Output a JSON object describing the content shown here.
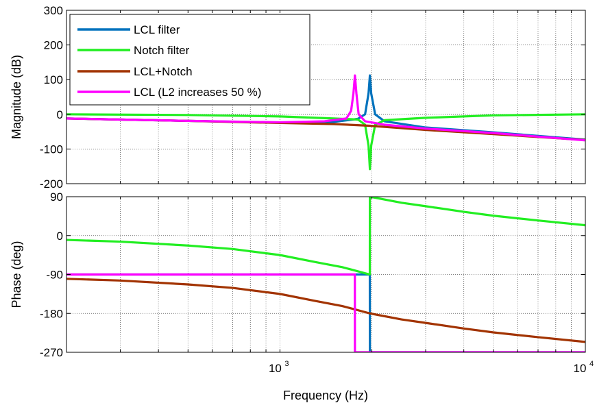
{
  "chart_data": [
    {
      "type": "line",
      "ylabel": "Magnitude (dB)",
      "xscale": "log",
      "xlim": [
        200,
        10000
      ],
      "ylim": [
        -200,
        300
      ],
      "yticks": [
        -200,
        -100,
        0,
        100,
        200,
        300
      ],
      "ytick_labels": [
        "-200",
        "-100",
        "0",
        "100",
        "200",
        "300"
      ],
      "grid": "dotted",
      "legend": {
        "position": "top-left",
        "entries": [
          "LCL filter",
          "Notch filter",
          "LCL+Notch",
          "LCL (L2 increases 50 %)"
        ]
      },
      "series": [
        {
          "name": "LCL filter",
          "color": "#0072bd",
          "points": [
            [
              200,
              -12
            ],
            [
              500,
              -19
            ],
            [
              1000,
              -24
            ],
            [
              1500,
              -22
            ],
            [
              1800,
              -13
            ],
            [
              1900,
              0
            ],
            [
              1950,
              60
            ],
            [
              1970,
              112
            ],
            [
              1990,
              60
            ],
            [
              2050,
              0
            ],
            [
              2200,
              -20
            ],
            [
              3000,
              -38
            ],
            [
              5000,
              -52
            ],
            [
              10000,
              -73
            ]
          ]
        },
        {
          "name": "Notch filter",
          "color": "#22ee22",
          "points": [
            [
              200,
              0
            ],
            [
              500,
              -2
            ],
            [
              1000,
              -6
            ],
            [
              1500,
              -12
            ],
            [
              1800,
              -15
            ],
            [
              1900,
              -30
            ],
            [
              1950,
              -90
            ],
            [
              1970,
              -158
            ],
            [
              1990,
              -90
            ],
            [
              2050,
              -30
            ],
            [
              2200,
              -17
            ],
            [
              3000,
              -10
            ],
            [
              5000,
              -3
            ],
            [
              10000,
              0
            ]
          ]
        },
        {
          "name": "LCL+Notch",
          "color": "#a23300",
          "points": [
            [
              200,
              -12
            ],
            [
              500,
              -19
            ],
            [
              1000,
              -25
            ],
            [
              1500,
              -28
            ],
            [
              1970,
              -33
            ],
            [
              3000,
              -45
            ],
            [
              5000,
              -57
            ],
            [
              10000,
              -74
            ]
          ]
        },
        {
          "name": "LCL (L2 increases 50 %)",
          "color": "#ff00ff",
          "points": [
            [
              200,
              -12
            ],
            [
              500,
              -19
            ],
            [
              1000,
              -23
            ],
            [
              1400,
              -20
            ],
            [
              1650,
              -12
            ],
            [
              1710,
              10
            ],
            [
              1740,
              60
            ],
            [
              1760,
              112
            ],
            [
              1780,
              60
            ],
            [
              1810,
              0
            ],
            [
              1900,
              -20
            ],
            [
              2200,
              -30
            ],
            [
              3000,
              -41
            ],
            [
              5000,
              -54
            ],
            [
              10000,
              -75
            ]
          ]
        }
      ]
    },
    {
      "type": "line",
      "xlabel": "Frequency  (Hz)",
      "ylabel": "Phase (deg)",
      "xscale": "log",
      "xlim": [
        200,
        10000
      ],
      "ylim": [
        -270,
        90
      ],
      "yticks": [
        -270,
        -180,
        -90,
        0,
        90
      ],
      "ytick_labels": [
        "-270",
        "-180",
        "-90",
        "0",
        "90"
      ],
      "xticks": [
        1000,
        10000
      ],
      "xtick_labels": [
        {
          "base": "10",
          "exp": "3"
        },
        {
          "base": "10",
          "exp": "4"
        }
      ],
      "grid": "dotted",
      "series": [
        {
          "name": "LCL filter",
          "color": "#0072bd",
          "points": [
            [
              200,
              -90
            ],
            [
              1969,
              -90
            ],
            [
              1970,
              -270
            ],
            [
              10000,
              -270
            ]
          ]
        },
        {
          "name": "Notch filter",
          "color": "#22ee22",
          "points": [
            [
              200,
              -10
            ],
            [
              300,
              -14
            ],
            [
              500,
              -23
            ],
            [
              700,
              -31
            ],
            [
              1000,
              -45
            ],
            [
              1300,
              -61
            ],
            [
              1600,
              -73
            ],
            [
              1969,
              -90
            ],
            [
              1970,
              90
            ],
            [
              2500,
              76
            ],
            [
              3000,
              68
            ],
            [
              4000,
              55
            ],
            [
              5000,
              46
            ],
            [
              7000,
              35
            ],
            [
              10000,
              24
            ]
          ]
        },
        {
          "name": "LCL+Notch",
          "color": "#a23300",
          "points": [
            [
              200,
              -100
            ],
            [
              300,
              -104
            ],
            [
              500,
              -113
            ],
            [
              700,
              -121
            ],
            [
              1000,
              -135
            ],
            [
              1300,
              -151
            ],
            [
              1600,
              -163
            ],
            [
              1969,
              -180
            ],
            [
              2500,
              -194
            ],
            [
              3000,
              -202
            ],
            [
              4000,
              -215
            ],
            [
              5000,
              -224
            ],
            [
              7000,
              -235
            ],
            [
              10000,
              -246
            ]
          ]
        },
        {
          "name": "LCL (L2 increases 50 %)",
          "color": "#ff00ff",
          "points": [
            [
              200,
              -90
            ],
            [
              1759,
              -90
            ],
            [
              1760,
              -270
            ],
            [
              10000,
              -270
            ]
          ]
        }
      ]
    }
  ]
}
